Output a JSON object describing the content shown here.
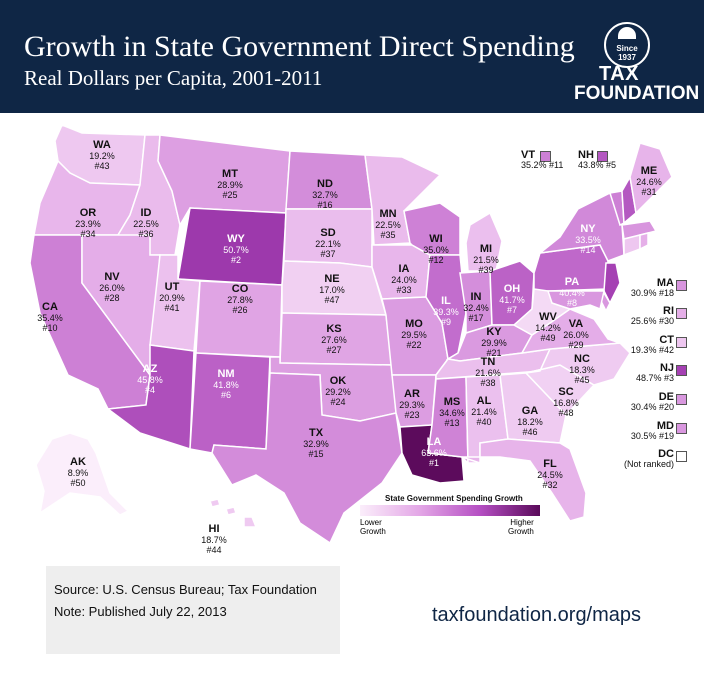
{
  "header": {
    "title": "Growth in State Government Direct Spending",
    "subtitle": "Real Dollars per Capita, 2001-2011"
  },
  "logo": {
    "since_line1": "Since",
    "since_line2": "1937",
    "name_line1": "TAX",
    "name_line2": "FOUNDATION"
  },
  "colors": {
    "header_bg": "#0f2645",
    "scale_low": "#fbeefb",
    "scale_high": "#5a0a5a"
  },
  "states": {
    "WA": {
      "abbr": "WA",
      "growth": "19.2%",
      "rank": "#43",
      "value": 19.2
    },
    "OR": {
      "abbr": "OR",
      "growth": "23.9%",
      "rank": "#34",
      "value": 23.9
    },
    "CA": {
      "abbr": "CA",
      "growth": "35.4%",
      "rank": "#10",
      "value": 35.4
    },
    "ID": {
      "abbr": "ID",
      "growth": "22.5%",
      "rank": "#36",
      "value": 22.5
    },
    "NV": {
      "abbr": "NV",
      "growth": "26.0%",
      "rank": "#28",
      "value": 26.0
    },
    "MT": {
      "abbr": "MT",
      "growth": "28.9%",
      "rank": "#25",
      "value": 28.9
    },
    "WY": {
      "abbr": "WY",
      "growth": "50.7%",
      "rank": "#2",
      "value": 50.7
    },
    "UT": {
      "abbr": "UT",
      "growth": "20.9%",
      "rank": "#41",
      "value": 20.9
    },
    "AZ": {
      "abbr": "AZ",
      "growth": "45.8%",
      "rank": "#4",
      "value": 45.8
    },
    "CO": {
      "abbr": "CO",
      "growth": "27.8%",
      "rank": "#26",
      "value": 27.8
    },
    "NM": {
      "abbr": "NM",
      "growth": "41.8%",
      "rank": "#6",
      "value": 41.8
    },
    "ND": {
      "abbr": "ND",
      "growth": "32.7%",
      "rank": "#16",
      "value": 32.7
    },
    "SD": {
      "abbr": "SD",
      "growth": "22.1%",
      "rank": "#37",
      "value": 22.1
    },
    "NE": {
      "abbr": "NE",
      "growth": "17.0%",
      "rank": "#47",
      "value": 17.0
    },
    "KS": {
      "abbr": "KS",
      "growth": "27.6%",
      "rank": "#27",
      "value": 27.6
    },
    "OK": {
      "abbr": "OK",
      "growth": "29.2%",
      "rank": "#24",
      "value": 29.2
    },
    "TX": {
      "abbr": "TX",
      "growth": "32.9%",
      "rank": "#15",
      "value": 32.9
    },
    "MN": {
      "abbr": "MN",
      "growth": "22.5%",
      "rank": "#35",
      "value": 22.5
    },
    "IA": {
      "abbr": "IA",
      "growth": "24.0%",
      "rank": "#33",
      "value": 24.0
    },
    "MO": {
      "abbr": "MO",
      "growth": "29.5%",
      "rank": "#22",
      "value": 29.5
    },
    "AR": {
      "abbr": "AR",
      "growth": "29.3%",
      "rank": "#23",
      "value": 29.3
    },
    "LA": {
      "abbr": "LA",
      "growth": "63.6%",
      "rank": "#1",
      "value": 63.6
    },
    "WI": {
      "abbr": "WI",
      "growth": "35.0%",
      "rank": "#12",
      "value": 35.0
    },
    "IL": {
      "abbr": "IL",
      "growth": "39.3%",
      "rank": "#9",
      "value": 39.3
    },
    "MI": {
      "abbr": "MI",
      "growth": "21.5%",
      "rank": "#39",
      "value": 21.5
    },
    "IN": {
      "abbr": "IN",
      "growth": "32.4%",
      "rank": "#17",
      "value": 32.4
    },
    "OH": {
      "abbr": "OH",
      "growth": "41.7%",
      "rank": "#7",
      "value": 41.7
    },
    "KY": {
      "abbr": "KY",
      "growth": "29.9%",
      "rank": "#21",
      "value": 29.9
    },
    "TN": {
      "abbr": "TN",
      "growth": "21.6%",
      "rank": "#38",
      "value": 21.6
    },
    "MS": {
      "abbr": "MS",
      "growth": "34.6%",
      "rank": "#13",
      "value": 34.6
    },
    "AL": {
      "abbr": "AL",
      "growth": "21.4%",
      "rank": "#40",
      "value": 21.4
    },
    "GA": {
      "abbr": "GA",
      "growth": "18.2%",
      "rank": "#46",
      "value": 18.2
    },
    "FL": {
      "abbr": "FL",
      "growth": "24.5%",
      "rank": "#32",
      "value": 24.5
    },
    "SC": {
      "abbr": "SC",
      "growth": "16.8%",
      "rank": "#48",
      "value": 16.8
    },
    "NC": {
      "abbr": "NC",
      "growth": "18.3%",
      "rank": "#45",
      "value": 18.3
    },
    "VA": {
      "abbr": "VA",
      "growth": "26.0%",
      "rank": "#29",
      "value": 26.0
    },
    "WV": {
      "abbr": "WV",
      "growth": "14.2%",
      "rank": "#49",
      "value": 14.2
    },
    "PA": {
      "abbr": "PA",
      "growth": "40.4%",
      "rank": "#8",
      "value": 40.4
    },
    "NY": {
      "abbr": "NY",
      "growth": "33.5%",
      "rank": "#14",
      "value": 33.5
    },
    "ME": {
      "abbr": "ME",
      "growth": "24.6%",
      "rank": "#31",
      "value": 24.6
    },
    "VT": {
      "abbr": "VT",
      "growth": "35.2%",
      "rank": "#11",
      "value": 35.2
    },
    "NH": {
      "abbr": "NH",
      "growth": "43.8%",
      "rank": "#5",
      "value": 43.8
    },
    "MA": {
      "abbr": "MA",
      "growth": "30.9%",
      "rank": "#18",
      "value": 30.9
    },
    "RI": {
      "abbr": "RI",
      "growth": "25.6%",
      "rank": "#30",
      "value": 25.6
    },
    "CT": {
      "abbr": "CT",
      "growth": "19.3%",
      "rank": "#42",
      "value": 19.3
    },
    "NJ": {
      "abbr": "NJ",
      "growth": "48.7%",
      "rank": "#3",
      "value": 48.7
    },
    "DE": {
      "abbr": "DE",
      "growth": "30.4%",
      "rank": "#20",
      "value": 30.4
    },
    "MD": {
      "abbr": "MD",
      "growth": "30.5%",
      "rank": "#19",
      "value": 30.5
    },
    "AK": {
      "abbr": "AK",
      "growth": "8.9%",
      "rank": "#50",
      "value": 8.9
    },
    "HI": {
      "abbr": "HI",
      "growth": "18.7%",
      "rank": "#44",
      "value": 18.7
    },
    "DC": {
      "abbr": "DC",
      "note": "(Not ranked)"
    }
  },
  "legend": {
    "title": "State Government Spending Growth",
    "low_label_1": "Lower",
    "low_label_2": "Growth",
    "high_label_1": "Higher",
    "high_label_2": "Growth"
  },
  "footer": {
    "source": "Source: U.S. Census Bureau; Tax Foundation",
    "note": "Note: Published July 22, 2013",
    "url": "taxfoundation.org/maps"
  }
}
